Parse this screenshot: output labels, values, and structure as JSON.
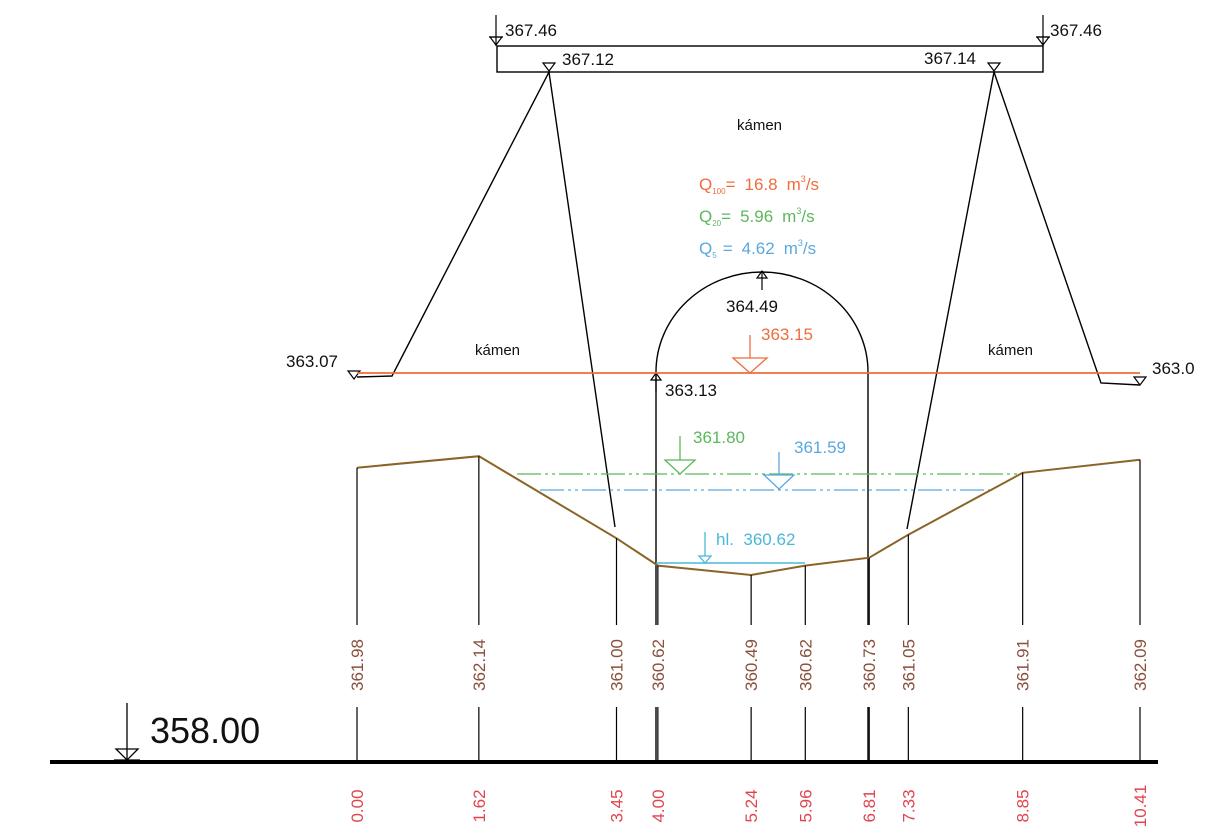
{
  "colors": {
    "line": "#000000",
    "terrain": "#8b6428",
    "q100": "#f06c3c",
    "q20": "#5cb85c",
    "q5": "#5aa8e0",
    "hl": "#4ab8d8",
    "elevation_text": "#8a4f3c",
    "station_text": "#e0454f"
  },
  "datum": {
    "label": "358.00"
  },
  "bridge_labels": {
    "deck_top_left": "367.46",
    "deck_top_right": "367.46",
    "deck_bottom_left": "367.12",
    "deck_bottom_right": "367.14",
    "abutment_left": "363.07",
    "abutment_right": "363.0",
    "arch_crown": "364.49",
    "arch_springing": "363.13"
  },
  "materials": {
    "top": "kámen",
    "left": "kámen",
    "right": "kámen"
  },
  "flows": [
    {
      "sym": "Q",
      "sub": "100",
      "eq": "=",
      "value": "16.8",
      "unit": "m",
      "sup": "3",
      "unit_tail": "/s",
      "color_key": "q100"
    },
    {
      "sym": "Q",
      "sub": "20",
      "eq": "=",
      "value": "5.96",
      "unit": "m",
      "sup": "3",
      "unit_tail": "/s",
      "color_key": "q20"
    },
    {
      "sym": "Q",
      "sub": "5",
      "eq": "=",
      "value": "4.62",
      "unit": "m",
      "sup": "3",
      "unit_tail": "/s",
      "color_key": "q5"
    }
  ],
  "water_levels": {
    "q100": "363.15",
    "q20": "361.80",
    "q5": "361.59",
    "hl": "hl.  360.62"
  },
  "terrain_points": [
    {
      "station": "0.00",
      "elevation": "361.98"
    },
    {
      "station": "1.62",
      "elevation": "362.14"
    },
    {
      "station": "3.45",
      "elevation": "361.00"
    },
    {
      "station": "4.00",
      "elevation": "360.62"
    },
    {
      "station": "5.24",
      "elevation": "360.49"
    },
    {
      "station": "5.96",
      "elevation": "360.62"
    },
    {
      "station": "6.81",
      "elevation": "360.73"
    },
    {
      "station": "7.33",
      "elevation": "361.05"
    },
    {
      "station": "8.85",
      "elevation": "361.91"
    },
    {
      "station": "10.41",
      "elevation": "362.09"
    }
  ]
}
